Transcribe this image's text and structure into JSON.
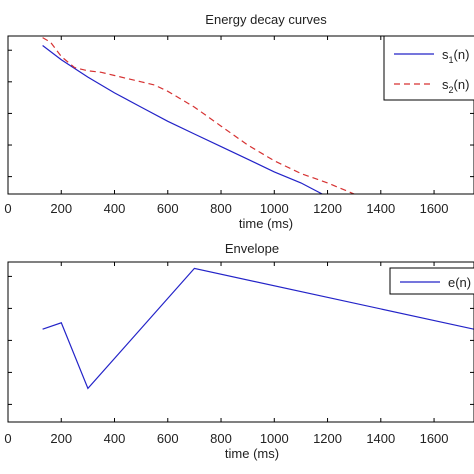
{
  "chart_data": [
    {
      "type": "line",
      "title": "Energy decay curves",
      "xlabel": "time (ms)",
      "ylabel": "",
      "xlim": [
        0,
        1750
      ],
      "xticks": [
        0,
        200,
        400,
        600,
        800,
        1000,
        1200,
        1400,
        1600
      ],
      "xtick_labels": [
        "0",
        "200",
        "400",
        "600",
        "800",
        "1000",
        "1200",
        "1400",
        "1600"
      ],
      "ylim": [
        0,
        1
      ],
      "yticks": [],
      "grid": false,
      "legend_position": "top-right",
      "legend_labels": [
        "s1(n)",
        "s2(n)"
      ],
      "series": [
        {
          "name": "s1(n)",
          "color": "#2323c8",
          "dash": "solid",
          "x": [
            130,
            200,
            300,
            400,
            500,
            600,
            700,
            800,
            900,
            1000,
            1100,
            1180
          ],
          "y": [
            0.94,
            0.85,
            0.74,
            0.64,
            0.55,
            0.46,
            0.38,
            0.3,
            0.22,
            0.14,
            0.07,
            0.0
          ]
        },
        {
          "name": "s2(n)",
          "color": "#d63232",
          "dash": "dashed",
          "x": [
            130,
            160,
            200,
            250,
            300,
            350,
            400,
            450,
            500,
            550,
            600,
            700,
            800,
            900,
            1000,
            1100,
            1200,
            1300
          ],
          "y": [
            0.99,
            0.96,
            0.87,
            0.8,
            0.78,
            0.77,
            0.75,
            0.73,
            0.71,
            0.69,
            0.65,
            0.55,
            0.43,
            0.31,
            0.21,
            0.13,
            0.07,
            0.0
          ]
        }
      ]
    },
    {
      "type": "line",
      "title": "Envelope",
      "xlabel": "time (ms)",
      "ylabel": "",
      "xlim": [
        0,
        1750
      ],
      "xticks": [
        0,
        200,
        400,
        600,
        800,
        1000,
        1200,
        1400,
        1600
      ],
      "xtick_labels": [
        "0",
        "200",
        "400",
        "600",
        "800",
        "1000",
        "1200",
        "1400",
        "1600"
      ],
      "ylim": [
        0,
        1
      ],
      "yticks": [],
      "grid": false,
      "legend_position": "top-right",
      "legend_labels": [
        "e(n)"
      ],
      "series": [
        {
          "name": "e(n)",
          "color": "#2323c8",
          "dash": "solid",
          "x": [
            130,
            200,
            300,
            700,
            1750
          ],
          "y": [
            0.58,
            0.62,
            0.21,
            0.96,
            0.58
          ]
        }
      ]
    }
  ]
}
